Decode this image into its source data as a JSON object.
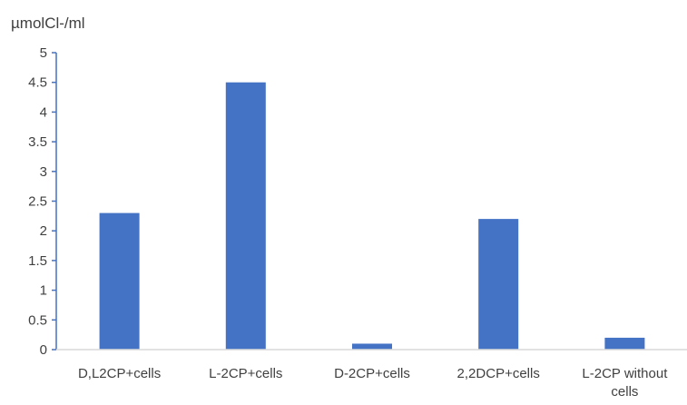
{
  "chart_data": {
    "type": "bar",
    "title": "",
    "xlabel": "",
    "ylabel": "µmolCl-/ml",
    "categories": [
      "D,L2CP+cells",
      "L-2CP+cells",
      "D-2CP+cells",
      "2,2DCP+cells",
      "L-2CP without cells"
    ],
    "category_lines": [
      [
        "D,L2CP+cells"
      ],
      [
        "L-2CP+cells"
      ],
      [
        "D-2CP+cells"
      ],
      [
        "2,2DCP+cells"
      ],
      [
        "L-2CP without",
        "cells"
      ]
    ],
    "values": [
      2.3,
      4.5,
      0.1,
      2.2,
      0.2
    ],
    "ylim": [
      0,
      5
    ],
    "yticks": [
      "0",
      "0.5",
      "1",
      "1.5",
      "2",
      "2.5",
      "3",
      "3.5",
      "4",
      "4.5",
      "5"
    ],
    "grid": false,
    "legend": "none",
    "colors": {
      "bar": "#4472C4",
      "axis": "#4472C4",
      "text": "#404040"
    }
  }
}
